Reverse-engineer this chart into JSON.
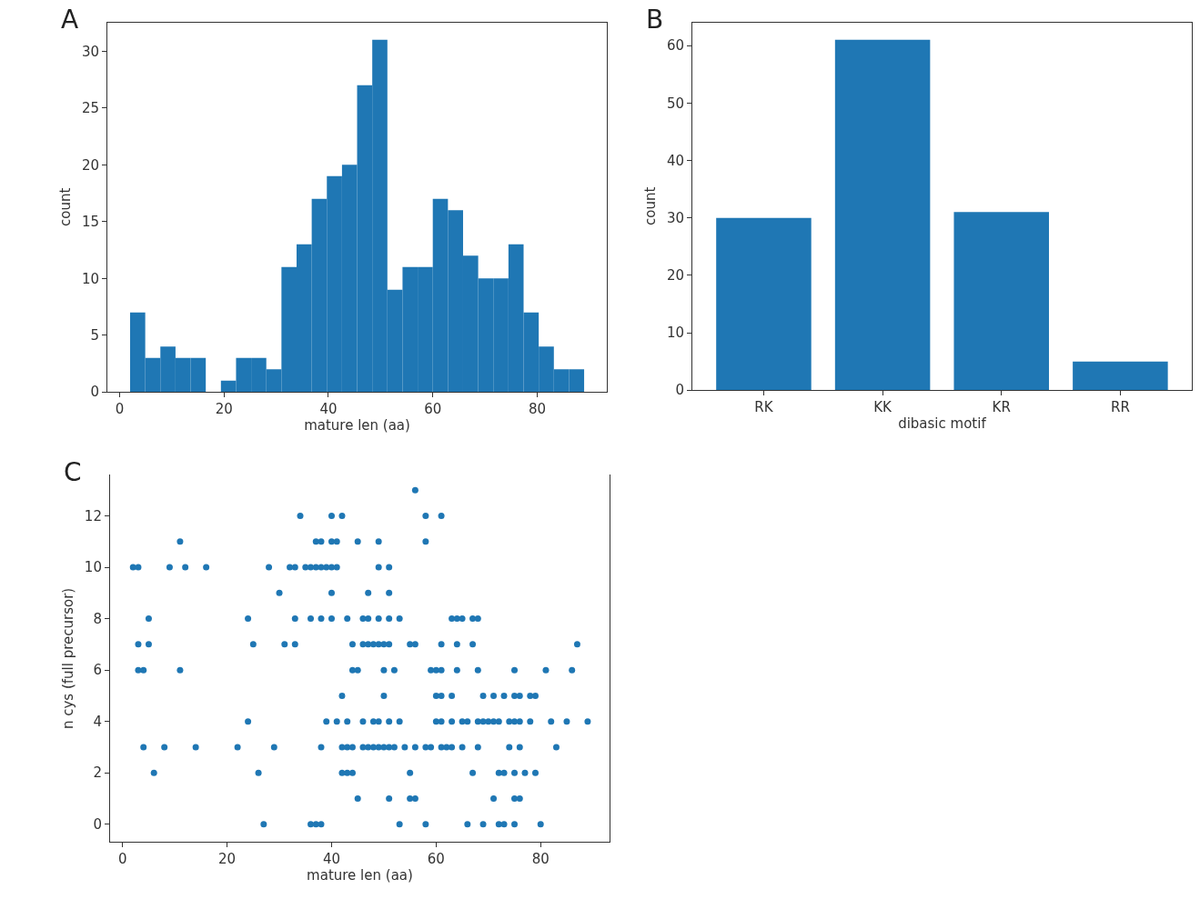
{
  "chart_data": [
    {
      "type": "histogram",
      "title": "A",
      "xlabel": "mature len (aa)",
      "ylabel": "count",
      "color": "#1f77b4",
      "bins": [
        2,
        4.9,
        7.8,
        10.7,
        13.6,
        16.5,
        19.4,
        22.3,
        25.2,
        28.1,
        31,
        33.9,
        36.8,
        39.7,
        42.6,
        45.5,
        48.4,
        51.3,
        54.2,
        57.1,
        60,
        62.9,
        65.8,
        68.7,
        71.6,
        74.5,
        77.4,
        80.3,
        83.2,
        86.1,
        89
      ],
      "values": [
        7,
        3,
        4,
        3,
        3,
        0,
        1,
        3,
        3,
        2,
        11,
        13,
        17,
        19,
        20,
        27,
        31,
        9,
        11,
        11,
        17,
        16,
        12,
        10,
        10,
        13,
        7,
        4,
        2,
        2
      ],
      "xlim": [
        -2.35,
        93.35
      ],
      "xticks": [
        0,
        20,
        40,
        60,
        80
      ],
      "ylim": [
        0,
        32.55
      ],
      "yticks": [
        0,
        5,
        10,
        15,
        20,
        25,
        30
      ]
    },
    {
      "type": "bar",
      "title": "B",
      "xlabel": "dibasic motif",
      "ylabel": "count",
      "color": "#1f77b4",
      "categories": [
        "RK",
        "KK",
        "KR",
        "RR"
      ],
      "values": [
        30,
        61,
        31,
        5
      ],
      "ylim": [
        0,
        64.05
      ],
      "yticks": [
        0,
        10,
        20,
        30,
        40,
        50,
        60
      ]
    },
    {
      "type": "scatter",
      "title": "C",
      "xlabel": "mature len (aa)",
      "ylabel": "n cys (full precursor)",
      "color": "#1f77b4",
      "marker": "circle",
      "x": [
        56,
        34,
        40,
        42,
        58,
        61,
        11,
        37,
        38,
        40,
        41,
        45,
        49,
        58,
        2,
        3,
        9,
        12,
        16,
        28,
        32,
        33,
        35,
        36,
        37,
        38,
        39,
        40,
        41,
        49,
        51,
        30,
        40,
        47,
        51,
        5,
        24,
        33,
        36,
        38,
        40,
        43,
        46,
        47,
        49,
        51,
        53,
        63,
        64,
        65,
        67,
        68,
        3,
        5,
        25,
        31,
        33,
        44,
        46,
        47,
        48,
        49,
        50,
        51,
        55,
        56,
        61,
        64,
        67,
        87,
        3,
        4,
        11,
        44,
        45,
        50,
        52,
        59,
        60,
        61,
        64,
        68,
        75,
        81,
        86,
        42,
        50,
        60,
        61,
        63,
        69,
        71,
        73,
        75,
        76,
        78,
        79,
        24,
        39,
        41,
        43,
        46,
        48,
        49,
        51,
        53,
        60,
        61,
        63,
        65,
        66,
        68,
        69,
        70,
        71,
        72,
        74,
        75,
        76,
        78,
        82,
        85,
        89,
        4,
        8,
        14,
        22,
        29,
        38,
        42,
        43,
        44,
        46,
        47,
        48,
        49,
        50,
        51,
        52,
        54,
        56,
        58,
        59,
        61,
        62,
        63,
        65,
        68,
        74,
        76,
        83,
        6,
        26,
        42,
        43,
        44,
        55,
        67,
        72,
        73,
        75,
        77,
        79,
        45,
        51,
        55,
        56,
        71,
        75,
        76,
        27,
        36,
        37,
        38,
        53,
        58,
        66,
        69,
        72,
        73,
        75,
        80
      ],
      "values": [
        13,
        12,
        12,
        12,
        12,
        12,
        11,
        11,
        11,
        11,
        11,
        11,
        11,
        11,
        10,
        10,
        10,
        10,
        10,
        10,
        10,
        10,
        10,
        10,
        10,
        10,
        10,
        10,
        10,
        10,
        10,
        9,
        9,
        9,
        9,
        8,
        8,
        8,
        8,
        8,
        8,
        8,
        8,
        8,
        8,
        8,
        8,
        8,
        8,
        8,
        8,
        8,
        7,
        7,
        7,
        7,
        7,
        7,
        7,
        7,
        7,
        7,
        7,
        7,
        7,
        7,
        7,
        7,
        7,
        7,
        6,
        6,
        6,
        6,
        6,
        6,
        6,
        6,
        6,
        6,
        6,
        6,
        6,
        6,
        6,
        5,
        5,
        5,
        5,
        5,
        5,
        5,
        5,
        5,
        5,
        5,
        5,
        4,
        4,
        4,
        4,
        4,
        4,
        4,
        4,
        4,
        4,
        4,
        4,
        4,
        4,
        4,
        4,
        4,
        4,
        4,
        4,
        4,
        4,
        4,
        4,
        4,
        4,
        3,
        3,
        3,
        3,
        3,
        3,
        3,
        3,
        3,
        3,
        3,
        3,
        3,
        3,
        3,
        3,
        3,
        3,
        3,
        3,
        3,
        3,
        3,
        3,
        3,
        3,
        3,
        3,
        2,
        2,
        2,
        2,
        2,
        2,
        2,
        2,
        2,
        2,
        2,
        2,
        1,
        1,
        1,
        1,
        1,
        1,
        1,
        0,
        0,
        0,
        0,
        0,
        0,
        0,
        0,
        0,
        0,
        0,
        0
      ],
      "xlim": [
        -2.4,
        93.2
      ],
      "xticks": [
        0,
        20,
        40,
        60,
        80
      ],
      "ylim": [
        -0.7,
        13.6
      ],
      "yticks": [
        0,
        2,
        4,
        6,
        8,
        10,
        12
      ]
    }
  ]
}
